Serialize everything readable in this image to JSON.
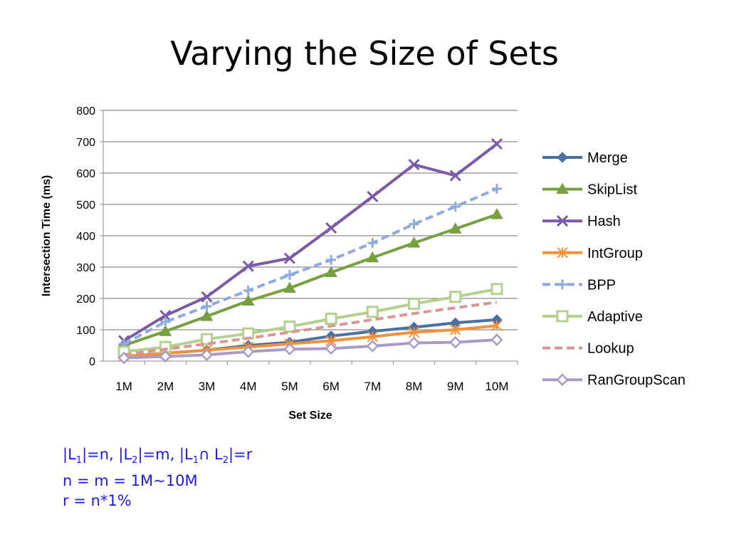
{
  "slide": {
    "title": "Varying the Size of Sets"
  },
  "notes": {
    "line1": {
      "p1": "|L",
      "s1": "1",
      "p2": "|=n, |L",
      "s2": "2",
      "p3": "|=m, |L",
      "s3": "1",
      "p4": "∩ L",
      "s4": "2",
      "p5": "|=r"
    },
    "line2": "n = m = 1M~10M",
    "line3": "r = n*1%"
  },
  "chart_data": {
    "type": "line",
    "title": "",
    "xlabel": "Set Size",
    "ylabel": "Intersection Time (ms)",
    "categories": [
      "1M",
      "2M",
      "3M",
      "4M",
      "5M",
      "6M",
      "7M",
      "8M",
      "9M",
      "10M"
    ],
    "ylim": [
      0,
      800
    ],
    "yticks": [
      0,
      100,
      200,
      300,
      400,
      500,
      600,
      700,
      800
    ],
    "grid": true,
    "legend_position": "right",
    "series": [
      {
        "name": "Merge",
        "color": "#4a6fa5",
        "marker": "diamond-filled",
        "dash": false,
        "values": [
          15,
          25,
          35,
          50,
          60,
          80,
          95,
          108,
          122,
          132
        ]
      },
      {
        "name": "SkipList",
        "color": "#77a040",
        "marker": "triangle",
        "dash": false,
        "values": [
          50,
          95,
          143,
          192,
          233,
          283,
          330,
          377,
          422,
          468
        ]
      },
      {
        "name": "Hash",
        "color": "#7b5aa6",
        "marker": "x",
        "dash": false,
        "values": [
          65,
          145,
          205,
          303,
          328,
          425,
          525,
          627,
          592,
          693
        ]
      },
      {
        "name": "IntGroup",
        "color": "#f4903a",
        "marker": "asterisk",
        "dash": false,
        "values": [
          15,
          25,
          35,
          45,
          55,
          65,
          78,
          92,
          100,
          113
        ]
      },
      {
        "name": "BPP",
        "color": "#8faadc",
        "marker": "plus",
        "dash": true,
        "values": [
          55,
          125,
          175,
          225,
          275,
          323,
          377,
          437,
          493,
          550
        ]
      },
      {
        "name": "Adaptive",
        "color": "#b3d08f",
        "marker": "square-open",
        "dash": false,
        "values": [
          30,
          45,
          70,
          88,
          110,
          135,
          157,
          183,
          205,
          230
        ]
      },
      {
        "name": "Lookup",
        "color": "#d99694",
        "marker": "none",
        "dash": true,
        "values": [
          20,
          38,
          55,
          73,
          92,
          112,
          132,
          152,
          170,
          188
        ]
      },
      {
        "name": "RanGroupScan",
        "color": "#a99ac7",
        "marker": "diamond-open",
        "dash": false,
        "values": [
          10,
          15,
          20,
          30,
          38,
          40,
          48,
          58,
          60,
          68
        ]
      }
    ]
  }
}
